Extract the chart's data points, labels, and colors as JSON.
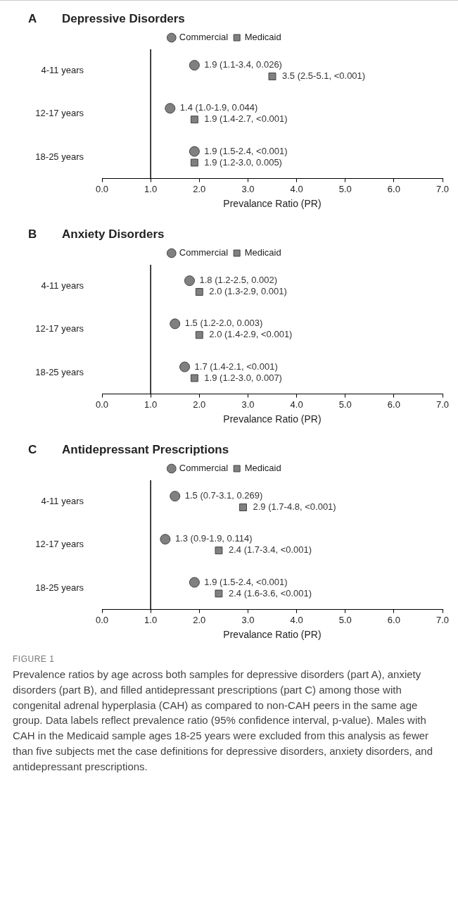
{
  "chart_data": [
    {
      "type": "scatter",
      "orientation": "horizontal",
      "title": "Depressive Disorders",
      "annotations": [
        "A"
      ],
      "xlabel": "Prevalance Ratio (PR)",
      "categories": [
        "4-11 years",
        "12-17 years",
        "18-25 years"
      ],
      "series": [
        {
          "name": "Commercial",
          "color": "#808080",
          "marker": "circle",
          "values": [
            1.9,
            1.4,
            1.9
          ],
          "value_labels": [
            "1.9 (1.1-3.4, 0.026)",
            "1.4 (1.0-1.9, 0.044)",
            "1.9 (1.5-2.4, <0.001)"
          ]
        },
        {
          "name": "Medicaid",
          "color": "#808080",
          "marker": "square",
          "values": [
            3.5,
            1.9,
            1.9
          ],
          "value_labels": [
            "3.5 (2.5-5.1, <0.001)",
            "1.9 (1.4-2.7, <0.001)",
            "1.9 (1.2-3.0, 0.005)"
          ]
        }
      ],
      "xlim": [
        0,
        7
      ],
      "xticks": [
        {
          "value": 0,
          "label": "0.0"
        },
        {
          "value": 1,
          "label": "1.0"
        },
        {
          "value": 2,
          "label": "2.0"
        },
        {
          "value": 3,
          "label": "3.0"
        },
        {
          "value": 4,
          "label": "4.0"
        },
        {
          "value": 5,
          "label": "5.0"
        },
        {
          "value": 6,
          "label": "6.0"
        },
        {
          "value": 7,
          "label": "7.0"
        }
      ],
      "ref_lines": [
        {
          "axis": "x",
          "value": 1
        }
      ],
      "grid": false,
      "legend": "top"
    },
    {
      "type": "scatter",
      "orientation": "horizontal",
      "title": "Anxiety Disorders",
      "annotations": [
        "B"
      ],
      "xlabel": "Prevalance Ratio (PR)",
      "categories": [
        "4-11 years",
        "12-17 years",
        "18-25 years"
      ],
      "series": [
        {
          "name": "Commercial",
          "color": "#808080",
          "marker": "circle",
          "values": [
            1.8,
            1.5,
            1.7
          ],
          "value_labels": [
            "1.8 (1.2-2.5, 0.002)",
            "1.5 (1.2-2.0, 0.003)",
            "1.7 (1.4-2.1, <0.001)"
          ]
        },
        {
          "name": "Medicaid",
          "color": "#808080",
          "marker": "square",
          "values": [
            2.0,
            2.0,
            1.9
          ],
          "value_labels": [
            "2.0 (1.3-2.9, 0.001)",
            "2.0 (1.4-2.9, <0.001)",
            "1.9 (1.2-3.0, 0.007)"
          ]
        }
      ],
      "xlim": [
        0,
        7
      ],
      "xticks": [
        {
          "value": 0,
          "label": "0.0"
        },
        {
          "value": 1,
          "label": "1.0"
        },
        {
          "value": 2,
          "label": "2.0"
        },
        {
          "value": 3,
          "label": "3.0"
        },
        {
          "value": 4,
          "label": "4.0"
        },
        {
          "value": 5,
          "label": "5.0"
        },
        {
          "value": 6,
          "label": "6.0"
        },
        {
          "value": 7,
          "label": "7.0"
        }
      ],
      "ref_lines": [
        {
          "axis": "x",
          "value": 1
        }
      ],
      "grid": false,
      "legend": "top"
    },
    {
      "type": "scatter",
      "orientation": "horizontal",
      "title": "Antidepressant Prescriptions",
      "annotations": [
        "C",
        "FIGURE 1",
        "Prevalence ratios by age across both samples for depressive disorders (part A), anxiety disorders (part B), and filled antidepressant prescriptions (part C) among those with congenital adrenal hyperplasia (CAH) as compared to non-CAH peers in the same age group. Data labels reflect prevalence ratio (95% confidence interval, p-value). Males with CAH in the Medicaid sample ages 18-25 years were excluded from this analysis as fewer than five subjects met the case definitions for depressive disorders, anxiety disorders, and antidepressant prescriptions."
      ],
      "xlabel": "Prevalance Ratio (PR)",
      "categories": [
        "4-11 years",
        "12-17 years",
        "18-25 years"
      ],
      "series": [
        {
          "name": "Commercial",
          "color": "#808080",
          "marker": "circle",
          "values": [
            1.5,
            1.3,
            1.9
          ],
          "value_labels": [
            "1.5 (0.7-3.1, 0.269)",
            "1.3 (0.9-1.9, 0.114)",
            "1.9 (1.5-2.4, <0.001)"
          ]
        },
        {
          "name": "Medicaid",
          "color": "#808080",
          "marker": "square",
          "values": [
            2.9,
            2.4,
            2.4
          ],
          "value_labels": [
            "2.9 (1.7-4.8, <0.001)",
            "2.4 (1.7-3.4, <0.001)",
            "2.4 (1.6-3.6, <0.001)"
          ]
        }
      ],
      "xlim": [
        0,
        7
      ],
      "xticks": [
        {
          "value": 0,
          "label": "0.0"
        },
        {
          "value": 1,
          "label": "1.0"
        },
        {
          "value": 2,
          "label": "2.0"
        },
        {
          "value": 3,
          "label": "3.0"
        },
        {
          "value": 4,
          "label": "4.0"
        },
        {
          "value": 5,
          "label": "5.0"
        },
        {
          "value": 6,
          "label": "6.0"
        },
        {
          "value": 7,
          "label": "7.0"
        }
      ],
      "ref_lines": [
        {
          "axis": "x",
          "value": 1
        }
      ],
      "grid": false,
      "legend": "top"
    }
  ]
}
